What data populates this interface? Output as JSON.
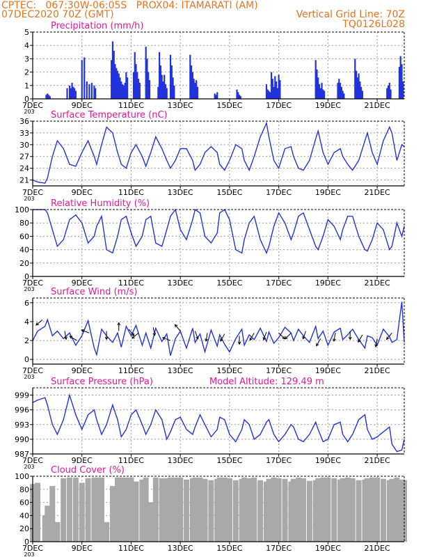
{
  "header": {
    "line1": "CPTEC:   067:30W-06:05S   PROX04: ITAMARATI (AM)",
    "line2": "07DEC2020 70Z (GMT)",
    "grid_note": "Vertical Grid Line: 70Z",
    "code": "TQ0126L028",
    "year_stub": "203"
  },
  "colors": {
    "header": "#e8731e",
    "title": "#e0189a",
    "series": "#2233dd",
    "cloud": "#a9a9a9",
    "grid": "#9a9a9a",
    "wind_arrow": "#000000"
  },
  "x_axis": {
    "tick_labels": [
      "7DEC",
      "9DEC",
      "11DEC",
      "13DEC",
      "15DEC",
      "17DEC",
      "19DEC",
      "21DEC"
    ],
    "tick_days": [
      7,
      9,
      11,
      13,
      15,
      17,
      19,
      21
    ],
    "range_days": [
      7,
      22.1
    ]
  },
  "chart_data": [
    {
      "id": "precip",
      "type": "bar",
      "title": "Precipitation (mm/h)",
      "ylim": [
        0,
        5
      ],
      "yticks": [
        0,
        1,
        2,
        3,
        4,
        5
      ],
      "grid": true,
      "x_days": [
        7.55,
        7.6,
        7.65,
        7.7,
        8.4,
        8.5,
        8.55,
        8.6,
        8.65,
        8.7,
        8.75,
        9.0,
        9.1,
        9.2,
        9.3,
        9.4,
        9.5,
        9.55,
        10.2,
        10.25,
        10.3,
        10.35,
        10.4,
        10.45,
        10.5,
        10.55,
        10.6,
        10.65,
        10.7,
        10.75,
        10.8,
        10.85,
        11.1,
        11.15,
        11.2,
        11.25,
        11.3,
        11.35,
        11.6,
        11.65,
        11.7,
        11.75,
        12.1,
        12.15,
        12.2,
        12.25,
        12.3,
        12.35,
        12.4,
        12.45,
        12.6,
        12.65,
        12.7,
        12.75,
        13.4,
        13.45,
        13.5,
        13.55,
        13.6,
        13.65,
        13.7,
        14.4,
        14.45,
        14.5,
        15.3,
        15.35,
        15.4,
        15.45,
        16.5,
        16.55,
        16.6,
        16.65,
        16.7,
        16.75,
        16.8,
        16.85,
        16.9,
        16.95,
        17.0,
        17.05,
        18.5,
        18.55,
        18.6,
        18.65,
        18.7,
        18.75,
        18.8,
        18.85,
        19.4,
        19.45,
        19.5,
        19.55,
        19.6,
        19.65,
        20.1,
        20.15,
        20.2,
        20.25,
        20.3,
        20.35,
        20.4,
        21.4,
        21.45,
        21.5,
        21.55,
        21.9,
        21.95,
        22.0,
        22.05
      ],
      "values": [
        0.3,
        0.4,
        0.3,
        0.2,
        0.8,
        1.0,
        0.8,
        1.2,
        0.9,
        0.8,
        0.6,
        2.9,
        3.1,
        1.3,
        1.1,
        1.2,
        1.0,
        0.8,
        2.9,
        4.3,
        3.6,
        2.6,
        2.3,
        2.1,
        1.9,
        1.6,
        1.3,
        1.1,
        1.0,
        1.2,
        2.0,
        1.6,
        2.0,
        3.5,
        2.6,
        2.0,
        1.5,
        1.2,
        3.9,
        3.0,
        2.0,
        1.4,
        0.9,
        3.5,
        2.5,
        1.8,
        1.3,
        1.8,
        1.1,
        0.8,
        3.3,
        2.5,
        1.6,
        1.0,
        3.3,
        2.5,
        2.0,
        1.5,
        1.2,
        1.4,
        0.9,
        0.4,
        0.3,
        0.5,
        0.7,
        0.5,
        0.3,
        0.2,
        1.1,
        0.7,
        0.6,
        0.5,
        2.0,
        1.5,
        0.9,
        1.7,
        1.3,
        0.8,
        1.8,
        1.4,
        2.9,
        2.2,
        1.6,
        1.1,
        0.8,
        1.2,
        0.7,
        0.6,
        1.2,
        1.5,
        1.2,
        0.9,
        0.6,
        0.4,
        3.0,
        2.1,
        1.6,
        1.9,
        1.3,
        0.9,
        0.6,
        0.8,
        1.0,
        1.2,
        0.7,
        2.4,
        3.2,
        2.6,
        1.3
      ]
    },
    {
      "id": "temp",
      "type": "line",
      "title": "Surface Temperature (nC)",
      "ylim": [
        19.5,
        36
      ],
      "yticks": [
        21,
        24,
        27,
        30,
        33,
        36
      ],
      "grid": true,
      "x_days": [
        7.0,
        7.2,
        7.5,
        7.6,
        7.8,
        8.0,
        8.25,
        8.5,
        8.75,
        9.0,
        9.25,
        9.5,
        9.6,
        9.8,
        10.0,
        10.25,
        10.45,
        10.6,
        10.8,
        11.0,
        11.2,
        11.45,
        11.6,
        11.8,
        12.0,
        12.25,
        12.45,
        12.6,
        12.8,
        13.0,
        13.25,
        13.5,
        13.6,
        13.8,
        14.0,
        14.25,
        14.5,
        14.6,
        14.8,
        15.0,
        15.25,
        15.5,
        15.6,
        15.8,
        16.0,
        16.25,
        16.5,
        16.6,
        16.8,
        17.0,
        17.25,
        17.5,
        17.6,
        17.8,
        18.0,
        18.25,
        18.5,
        18.6,
        18.8,
        19.0,
        19.25,
        19.5,
        19.6,
        19.8,
        20.0,
        20.25,
        20.5,
        20.6,
        20.8,
        21.0,
        21.25,
        21.5,
        21.6,
        21.8,
        22.0,
        22.1
      ],
      "values": [
        21,
        20.5,
        20.2,
        21.5,
        27,
        31,
        29,
        25,
        24.5,
        28,
        31,
        27,
        25,
        30,
        34.5,
        33,
        28,
        25,
        24,
        28,
        30,
        27,
        24.5,
        28,
        32,
        29,
        26,
        24,
        26,
        29,
        29,
        26,
        23.5,
        25,
        28,
        29.5,
        28,
        25,
        23.5,
        26,
        30,
        29,
        26,
        23.5,
        27,
        32,
        35.5,
        32,
        26,
        24,
        29,
        29.5,
        27,
        24,
        23.5,
        26,
        31.5,
        33.5,
        28,
        25,
        28,
        29,
        27,
        25,
        23.5,
        26,
        31,
        33,
        28,
        25,
        31,
        34.5,
        33,
        26,
        30,
        29.5
      ]
    },
    {
      "id": "rh",
      "type": "line",
      "title": "Relative Humidity (%)",
      "ylim": [
        0,
        100
      ],
      "yticks": [
        0,
        20,
        40,
        60,
        80,
        100
      ],
      "grid": true,
      "x_days": [
        7.0,
        7.2,
        7.5,
        7.6,
        7.8,
        8.0,
        8.25,
        8.5,
        8.75,
        9.0,
        9.25,
        9.5,
        9.6,
        9.8,
        10.0,
        10.25,
        10.45,
        10.6,
        10.8,
        11.0,
        11.2,
        11.45,
        11.6,
        11.8,
        12.0,
        12.25,
        12.45,
        12.6,
        12.8,
        13.0,
        13.25,
        13.5,
        13.6,
        13.8,
        14.0,
        14.25,
        14.5,
        14.6,
        14.8,
        15.0,
        15.25,
        15.5,
        15.6,
        15.8,
        16.0,
        16.25,
        16.5,
        16.6,
        16.8,
        17.0,
        17.25,
        17.5,
        17.6,
        17.8,
        18.0,
        18.25,
        18.5,
        18.6,
        18.8,
        19.0,
        19.25,
        19.5,
        19.6,
        19.8,
        20.0,
        20.25,
        20.5,
        20.6,
        20.8,
        21.0,
        21.25,
        21.5,
        21.6,
        21.8,
        22.0,
        22.1
      ],
      "values": [
        100,
        100,
        100,
        95,
        70,
        45,
        55,
        85,
        92,
        80,
        50,
        60,
        75,
        90,
        40,
        35,
        60,
        85,
        90,
        65,
        45,
        60,
        85,
        90,
        50,
        45,
        70,
        90,
        100,
        70,
        55,
        85,
        100,
        95,
        60,
        50,
        65,
        95,
        100,
        85,
        40,
        35,
        55,
        80,
        90,
        55,
        35,
        45,
        75,
        95,
        80,
        55,
        65,
        90,
        95,
        70,
        45,
        40,
        60,
        85,
        75,
        55,
        70,
        90,
        90,
        60,
        40,
        38,
        55,
        80,
        70,
        40,
        45,
        80,
        60,
        75
      ]
    },
    {
      "id": "wind",
      "type": "line",
      "title": "Surface Wind (m/s)",
      "ylim": [
        -0.5,
        6.5
      ],
      "yticks": [
        0,
        2,
        4,
        6
      ],
      "grid": true,
      "x_days": [
        7.0,
        7.2,
        7.5,
        7.6,
        7.8,
        8.0,
        8.25,
        8.5,
        8.75,
        9.0,
        9.25,
        9.5,
        9.6,
        9.8,
        10.0,
        10.25,
        10.45,
        10.6,
        10.8,
        11.0,
        11.2,
        11.45,
        11.6,
        11.8,
        12.0,
        12.25,
        12.45,
        12.6,
        12.8,
        13.0,
        13.25,
        13.5,
        13.6,
        13.8,
        14.0,
        14.25,
        14.5,
        14.6,
        14.8,
        15.0,
        15.25,
        15.5,
        15.6,
        15.8,
        16.0,
        16.25,
        16.5,
        16.6,
        16.8,
        17.0,
        17.25,
        17.5,
        17.6,
        17.8,
        18.0,
        18.25,
        18.5,
        18.6,
        18.8,
        19.0,
        19.25,
        19.5,
        19.6,
        19.8,
        20.0,
        20.25,
        20.5,
        20.6,
        20.8,
        21.0,
        21.25,
        21.5,
        21.6,
        21.8,
        22.0,
        22.1
      ],
      "values": [
        2,
        3,
        3.5,
        4.2,
        2.5,
        3,
        2.2,
        2.8,
        1.5,
        2.5,
        4.1,
        1.2,
        0.5,
        3.2,
        2.5,
        1.8,
        2.8,
        1.3,
        3.5,
        2.5,
        3.6,
        1.5,
        2.8,
        1.2,
        3.3,
        1.9,
        2.7,
        0.4,
        2.2,
        3,
        1.2,
        3.3,
        1.8,
        2.7,
        0.8,
        3.1,
        1.4,
        2.6,
        1.6,
        0.8,
        2.2,
        3.2,
        1.5,
        2.6,
        2.1,
        3.3,
        1.9,
        2.9,
        1.7,
        2.3,
        3.4,
        2.8,
        2,
        3.2,
        2.5,
        1.8,
        3.5,
        2.2,
        3.0,
        1.5,
        2.9,
        3.3,
        2.1,
        2.6,
        3.2,
        2.1,
        1.2,
        2.5,
        2.3,
        1.5,
        3.2,
        2.4,
        1.8,
        2.1,
        6.1,
        1.8
      ],
      "arrows": [
        {
          "day": 7.4,
          "speed": 4.2,
          "dir_deg": 140
        },
        {
          "day": 8.3,
          "speed": 3,
          "dir_deg": 80
        },
        {
          "day": 8.8,
          "speed": 2,
          "dir_deg": 210
        },
        {
          "day": 9.3,
          "speed": 2.8,
          "dir_deg": 200
        },
        {
          "day": 10.0,
          "speed": 3,
          "dir_deg": 90
        },
        {
          "day": 10.5,
          "speed": 3,
          "dir_deg": 270
        },
        {
          "day": 10.9,
          "speed": 3.2,
          "dir_deg": 50
        },
        {
          "day": 11.3,
          "speed": 2.8,
          "dir_deg": 140
        },
        {
          "day": 11.9,
          "speed": 3.4,
          "dir_deg": 80
        },
        {
          "day": 12.6,
          "speed": 2,
          "dir_deg": 200
        },
        {
          "day": 13.0,
          "speed": 3,
          "dir_deg": 230
        },
        {
          "day": 13.6,
          "speed": 3,
          "dir_deg": 70
        },
        {
          "day": 14.1,
          "speed": 2.8,
          "dir_deg": 100
        },
        {
          "day": 14.8,
          "speed": 2.7,
          "dir_deg": 120
        },
        {
          "day": 15.4,
          "speed": 2.5,
          "dir_deg": 90
        },
        {
          "day": 16.0,
          "speed": 2.8,
          "dir_deg": 120
        },
        {
          "day": 16.5,
          "speed": 2.9,
          "dir_deg": 110
        },
        {
          "day": 17.0,
          "speed": 2.8,
          "dir_deg": 45
        },
        {
          "day": 17.5,
          "speed": 2.8,
          "dir_deg": 135
        },
        {
          "day": 18.1,
          "speed": 3,
          "dir_deg": 110
        },
        {
          "day": 18.7,
          "speed": 2.2,
          "dir_deg": 120
        },
        {
          "day": 19.3,
          "speed": 2.8,
          "dir_deg": 100
        },
        {
          "day": 19.9,
          "speed": 3,
          "dir_deg": 90
        },
        {
          "day": 20.4,
          "speed": 2.6,
          "dir_deg": 120
        },
        {
          "day": 21.0,
          "speed": 2.2,
          "dir_deg": 100
        },
        {
          "day": 21.6,
          "speed": 2.8,
          "dir_deg": 130
        }
      ]
    },
    {
      "id": "pres",
      "type": "line",
      "title": "Surface Pressure (hPa)",
      "annotation": "Model Altitude: 129.49 m",
      "ylim": [
        987,
        1000.5
      ],
      "yticks": [
        987,
        990,
        993,
        996,
        999
      ],
      "grid": true,
      "x_days": [
        7.0,
        7.2,
        7.5,
        7.6,
        7.8,
        8.0,
        8.25,
        8.5,
        8.75,
        9.0,
        9.25,
        9.5,
        9.6,
        9.8,
        10.0,
        10.25,
        10.45,
        10.6,
        10.8,
        11.0,
        11.2,
        11.45,
        11.6,
        11.8,
        12.0,
        12.25,
        12.45,
        12.6,
        12.8,
        13.0,
        13.25,
        13.5,
        13.6,
        13.8,
        14.0,
        14.25,
        14.5,
        14.6,
        14.8,
        15.0,
        15.25,
        15.5,
        15.6,
        15.8,
        16.0,
        16.25,
        16.5,
        16.6,
        16.8,
        17.0,
        17.25,
        17.5,
        17.6,
        17.8,
        18.0,
        18.25,
        18.5,
        18.6,
        18.8,
        19.0,
        19.25,
        19.5,
        19.6,
        19.8,
        20.0,
        20.25,
        20.5,
        20.6,
        20.8,
        21.0,
        21.25,
        21.5,
        21.6,
        21.8,
        22.0,
        22.1
      ],
      "values": [
        997.5,
        998,
        998.5,
        997,
        993,
        991,
        994,
        999,
        995,
        992,
        995,
        996,
        994,
        991,
        993,
        997,
        994,
        990.5,
        992,
        995,
        996,
        993,
        991,
        993,
        996,
        994,
        990,
        991.5,
        994,
        994.5,
        992,
        991,
        992.5,
        995,
        993,
        990.5,
        992,
        994.5,
        994,
        991,
        989.5,
        992,
        994,
        993,
        990,
        991,
        993.5,
        994,
        991,
        989.5,
        991,
        993,
        992.5,
        990,
        989.5,
        991,
        993.5,
        992,
        989.5,
        990,
        993,
        993.5,
        991,
        989.5,
        991,
        994,
        995,
        992,
        990,
        990.5,
        991.5,
        992.5,
        989,
        987.5,
        987.8,
        990
      ]
    },
    {
      "id": "cloud",
      "type": "bar",
      "title": "Cloud Cover (%)",
      "ylim": [
        0,
        100
      ],
      "yticks": [
        0,
        20,
        40,
        60,
        80,
        100
      ],
      "grid": true,
      "x_days": [
        7.0,
        7.2,
        7.5,
        7.6,
        7.8,
        8.0,
        8.25,
        8.5,
        8.75,
        9.0,
        9.25,
        9.5,
        9.6,
        9.8,
        10.0,
        10.25,
        10.45,
        10.6,
        10.8,
        11.0,
        11.2,
        11.45,
        11.6,
        11.8,
        12.0,
        12.25,
        12.45,
        12.6,
        12.8,
        13.0,
        13.25,
        13.5,
        13.6,
        13.8,
        14.0,
        14.25,
        14.5,
        14.6,
        14.8,
        15.0,
        15.25,
        15.5,
        15.6,
        15.8,
        16.0,
        16.25,
        16.5,
        16.6,
        16.8,
        17.0,
        17.25,
        17.5,
        17.6,
        17.8,
        18.0,
        18.25,
        18.5,
        18.6,
        18.8,
        19.0,
        19.25,
        19.5,
        19.6,
        19.8,
        20.0,
        20.25,
        20.5,
        20.6,
        20.8,
        21.0,
        21.25,
        21.5,
        21.6,
        21.8,
        22.0,
        22.1
      ],
      "values": [
        88,
        90,
        40,
        55,
        85,
        30,
        97,
        98,
        98,
        90,
        97,
        98,
        98,
        98,
        30,
        85,
        98,
        98,
        98,
        98,
        92,
        95,
        98,
        60,
        98,
        97,
        97,
        98,
        98,
        98,
        95,
        97,
        98,
        98,
        96,
        94,
        96,
        98,
        98,
        97,
        94,
        96,
        98,
        97,
        98,
        94,
        92,
        96,
        98,
        97,
        96,
        92,
        96,
        98,
        97,
        93,
        94,
        97,
        98,
        98,
        97,
        95,
        97,
        98,
        97,
        94,
        95,
        97,
        98,
        98,
        96,
        94,
        96,
        98,
        95,
        94
      ]
    }
  ]
}
